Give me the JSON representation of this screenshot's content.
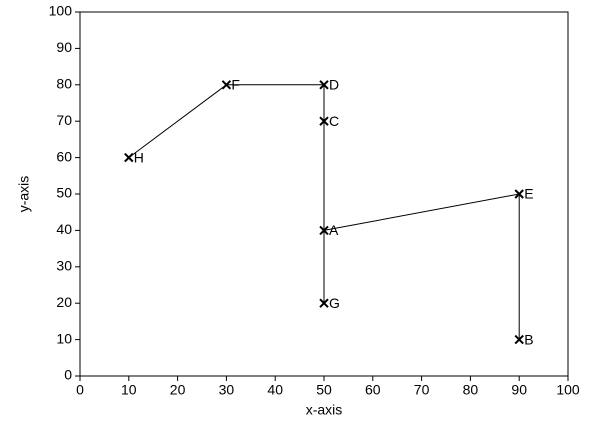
{
  "chart_data": {
    "type": "scatter",
    "xlabel": "x-axis",
    "ylabel": "y-axis",
    "labels": [
      "A",
      "B",
      "C",
      "D",
      "E",
      "F",
      "G",
      "H"
    ],
    "x": [
      50,
      90,
      50,
      50,
      90,
      30,
      50,
      10
    ],
    "values": [
      40,
      10,
      70,
      80,
      50,
      80,
      20,
      60
    ],
    "edges": [
      [
        "H",
        "F"
      ],
      [
        "F",
        "D"
      ],
      [
        "D",
        "C"
      ],
      [
        "C",
        "A"
      ],
      [
        "A",
        "G"
      ],
      [
        "A",
        "E"
      ],
      [
        "E",
        "B"
      ]
    ],
    "color": "#000000",
    "xlim": [
      0,
      100
    ],
    "xticks": [
      0,
      10,
      20,
      30,
      40,
      50,
      60,
      70,
      80,
      90,
      100
    ],
    "ylim": [
      0,
      100
    ],
    "yticks": [
      0,
      10,
      20,
      30,
      40,
      50,
      60,
      70,
      80,
      90,
      100
    ],
    "grid": false
  }
}
